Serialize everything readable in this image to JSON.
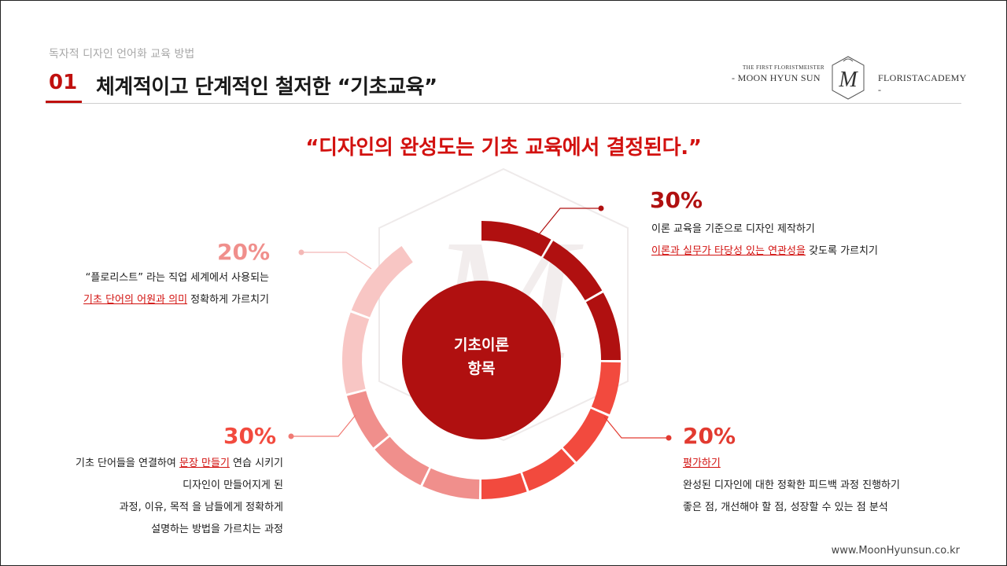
{
  "header": {
    "subtitle": "독자적 디자인 언어화 교육 방법",
    "number": "01",
    "title": "체계적이고 단계적인 철저한 “기초교육”"
  },
  "logo": {
    "top_text": "THE FIRST FLORISTMEISTER",
    "left_text": "- MOON HYUN SUN",
    "right_text": "FLORISTACADEMY -",
    "mark": "M",
    "icon": "academy-logo-icon"
  },
  "quote": "“디자인의 완성도는 기초 교육에서 결정된다.”",
  "center": {
    "line1": "기초이론",
    "line2": "항목"
  },
  "colors": {
    "accent": "#c0100e",
    "dark_red": "#b01010",
    "mid_red": "#f24a3e",
    "light_red": "#f08f8c",
    "pale_red": "#f8c6c4",
    "watermark": "#f2eded"
  },
  "items": {
    "top_right": {
      "percent": "30%",
      "line1": "이론 교육을 기준으로 디자인 제작하기",
      "line2_highlight": "이론과 실무가 타당성 있는 연관성을",
      "line2_rest": " 갖도록 가르치기"
    },
    "top_left": {
      "percent": "20%",
      "line1": "“플로리스트” 라는 직업 세계에서 사용되는",
      "line2_highlight": "기초 단어의 어원과 의미",
      "line2_rest": " 정확하게 가르치기"
    },
    "bottom_left": {
      "percent": "30%",
      "line1_pre": "기초 단어들을 연결하여 ",
      "line1_highlight": "문장 만들기",
      "line1_post": " 연습 시키기",
      "line2": "디자인이 만들어지게 된",
      "line3": "과정, 이유, 목적 을 남들에게 정확하게",
      "line4": "설명하는 방법을 가르치는 과정"
    },
    "bottom_right": {
      "percent": "20%",
      "line1_highlight": "평가하기",
      "line2": "완성된 디자인에 대한 정확한 피드백 과정 진행하기",
      "line3": "좋은 점, 개선해야 할 점, 성장할 수 있는 점 분석"
    }
  },
  "footer": {
    "website": "www.MoonHyunsun.co.kr"
  }
}
